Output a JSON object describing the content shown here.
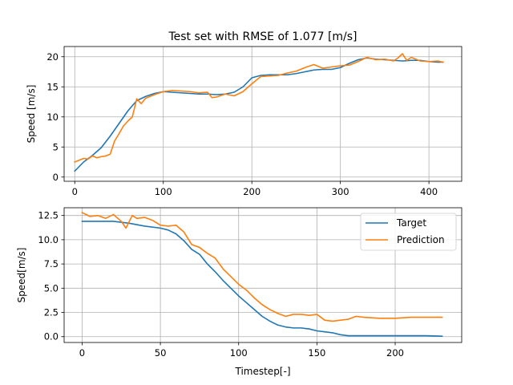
{
  "chart_data": [
    {
      "type": "line",
      "title": "Test set with RMSE of 1.077 [m/s]",
      "xlabel": "",
      "ylabel": "Speed [m/s]",
      "xlim": [
        -12,
        437
      ],
      "ylim": [
        -0.7,
        21.7
      ],
      "xticks": [
        0,
        100,
        200,
        300,
        400
      ],
      "yticks": [
        0,
        5,
        10,
        15,
        20
      ],
      "grid": true,
      "colors": {
        "Target": "#1f77b4",
        "Prediction": "#ff7f0e"
      },
      "series": [
        {
          "name": "Target",
          "x": [
            0,
            10,
            20,
            30,
            40,
            50,
            60,
            70,
            80,
            90,
            100,
            110,
            120,
            130,
            140,
            150,
            160,
            170,
            180,
            190,
            200,
            210,
            220,
            230,
            240,
            250,
            260,
            270,
            280,
            290,
            300,
            310,
            320,
            330,
            340,
            350,
            360,
            370,
            380,
            390,
            400,
            410,
            416
          ],
          "y": [
            1.0,
            2.5,
            3.6,
            4.9,
            6.8,
            8.9,
            11.0,
            12.7,
            13.4,
            13.9,
            14.2,
            14.1,
            14.0,
            13.9,
            13.8,
            13.8,
            13.7,
            13.8,
            14.1,
            15.0,
            16.5,
            16.9,
            17.0,
            17.0,
            17.0,
            17.2,
            17.5,
            17.8,
            17.9,
            17.9,
            18.2,
            18.9,
            19.5,
            19.8,
            19.6,
            19.5,
            19.4,
            19.3,
            19.4,
            19.4,
            19.2,
            19.1,
            19.1
          ]
        },
        {
          "name": "Prediction",
          "x": [
            0,
            5,
            10,
            15,
            20,
            25,
            30,
            35,
            40,
            45,
            50,
            55,
            60,
            65,
            70,
            75,
            80,
            90,
            100,
            110,
            120,
            130,
            140,
            150,
            155,
            160,
            170,
            180,
            190,
            200,
            210,
            220,
            230,
            240,
            250,
            260,
            270,
            280,
            290,
            300,
            310,
            320,
            330,
            340,
            350,
            360,
            365,
            370,
            375,
            380,
            390,
            400,
            410,
            416
          ],
          "y": [
            2.5,
            2.8,
            3.1,
            3.0,
            3.5,
            3.2,
            3.4,
            3.5,
            3.8,
            6.0,
            7.2,
            8.5,
            9.3,
            10.0,
            13.0,
            12.2,
            13.1,
            13.7,
            14.2,
            14.4,
            14.3,
            14.2,
            14.0,
            14.1,
            13.2,
            13.3,
            13.8,
            13.5,
            14.2,
            15.5,
            16.7,
            16.8,
            16.9,
            17.3,
            17.6,
            18.2,
            18.7,
            18.1,
            18.3,
            18.5,
            18.6,
            19.2,
            19.9,
            19.5,
            19.6,
            19.3,
            19.8,
            20.5,
            19.4,
            19.9,
            19.3,
            19.2,
            19.3,
            19.1
          ]
        }
      ]
    },
    {
      "type": "line",
      "title": "",
      "xlabel": "Timestep[-]",
      "ylabel": "Speed[m/s]",
      "xlim": [
        -11.5,
        242.5
      ],
      "ylim": [
        -0.6,
        13.3
      ],
      "xticks": [
        0,
        50,
        100,
        150,
        200
      ],
      "yticks": [
        0.0,
        2.5,
        5.0,
        7.5,
        10.0,
        12.5
      ],
      "ytick_labels": [
        "0.0",
        "2.5",
        "5.0",
        "7.5",
        "10.0",
        "12.5"
      ],
      "grid": true,
      "legend": {
        "placement": "upper right",
        "entries": [
          "Target",
          "Prediction"
        ]
      },
      "colors": {
        "Target": "#1f77b4",
        "Prediction": "#ff7f0e"
      },
      "series": [
        {
          "name": "Target",
          "x": [
            0,
            10,
            20,
            30,
            40,
            50,
            55,
            60,
            65,
            70,
            75,
            80,
            85,
            90,
            95,
            100,
            105,
            110,
            115,
            120,
            125,
            130,
            135,
            140,
            145,
            150,
            155,
            160,
            165,
            170,
            180,
            190,
            200,
            210,
            220,
            230
          ],
          "y": [
            11.9,
            11.9,
            11.9,
            11.7,
            11.4,
            11.2,
            11.0,
            10.6,
            9.9,
            9.0,
            8.5,
            7.5,
            6.7,
            5.8,
            5.0,
            4.2,
            3.5,
            2.8,
            2.1,
            1.6,
            1.2,
            1.0,
            0.9,
            0.9,
            0.8,
            0.6,
            0.5,
            0.4,
            0.2,
            0.1,
            0.1,
            0.1,
            0.1,
            0.1,
            0.1,
            0.05
          ]
        },
        {
          "name": "Prediction",
          "x": [
            0,
            5,
            10,
            15,
            20,
            25,
            28,
            32,
            35,
            40,
            45,
            50,
            55,
            60,
            65,
            70,
            75,
            80,
            85,
            90,
            95,
            100,
            105,
            110,
            115,
            120,
            125,
            130,
            135,
            140,
            145,
            150,
            155,
            160,
            165,
            170,
            175,
            180,
            190,
            200,
            210,
            220,
            230
          ],
          "y": [
            12.8,
            12.4,
            12.5,
            12.2,
            12.6,
            11.9,
            11.2,
            12.5,
            12.2,
            12.3,
            12.0,
            11.5,
            11.4,
            11.5,
            10.8,
            9.5,
            9.2,
            8.6,
            8.1,
            7.0,
            6.2,
            5.4,
            4.8,
            4.0,
            3.3,
            2.8,
            2.4,
            2.1,
            2.3,
            2.3,
            2.2,
            2.3,
            1.7,
            1.6,
            1.7,
            1.8,
            2.1,
            2.0,
            1.9,
            1.9,
            2.0,
            2.0,
            2.0
          ]
        }
      ]
    }
  ]
}
